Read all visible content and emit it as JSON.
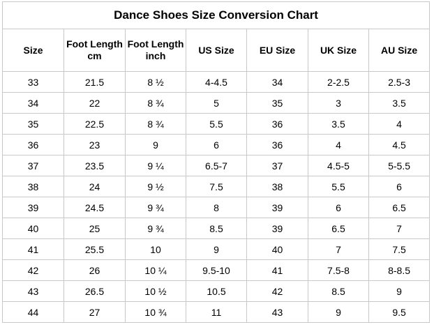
{
  "title": "Dance Shoes Size Conversion Chart",
  "headers": [
    {
      "line1": "Size",
      "line2": ""
    },
    {
      "line1": "Foot Length",
      "line2": "cm"
    },
    {
      "line1": "Foot Length",
      "line2": "inch"
    },
    {
      "line1": "US Size",
      "line2": ""
    },
    {
      "line1": "EU Size",
      "line2": ""
    },
    {
      "line1": "UK Size",
      "line2": ""
    },
    {
      "line1": "AU Size",
      "line2": ""
    }
  ],
  "rows": [
    [
      "33",
      "21.5",
      "8 ½",
      "4-4.5",
      "34",
      "2-2.5",
      "2.5-3"
    ],
    [
      "34",
      "22",
      "8 ¾",
      "5",
      "35",
      "3",
      "3.5"
    ],
    [
      "35",
      "22.5",
      "8 ¾",
      "5.5",
      "36",
      "3.5",
      "4"
    ],
    [
      "36",
      "23",
      "9",
      "6",
      "36",
      "4",
      "4.5"
    ],
    [
      "37",
      "23.5",
      "9 ¼",
      "6.5-7",
      "37",
      "4.5-5",
      "5-5.5"
    ],
    [
      "38",
      "24",
      "9 ½",
      "7.5",
      "38",
      "5.5",
      "6"
    ],
    [
      "39",
      "24.5",
      "9 ¾",
      "8",
      "39",
      "6",
      "6.5"
    ],
    [
      "40",
      "25",
      "9 ¾",
      "8.5",
      "39",
      "6.5",
      "7"
    ],
    [
      "41",
      "25.5",
      "10",
      "9",
      "40",
      "7",
      "7.5"
    ],
    [
      "42",
      "26",
      "10 ¼",
      "9.5-10",
      "41",
      "7.5-8",
      "8-8.5"
    ],
    [
      "43",
      "26.5",
      "10 ½",
      "10.5",
      "42",
      "8.5",
      "9"
    ],
    [
      "44",
      "27",
      "10 ¾",
      "11",
      "43",
      "9",
      "9.5"
    ]
  ],
  "colors": {
    "border": "#c8c8c8",
    "text": "#000000",
    "background": "#ffffff"
  }
}
